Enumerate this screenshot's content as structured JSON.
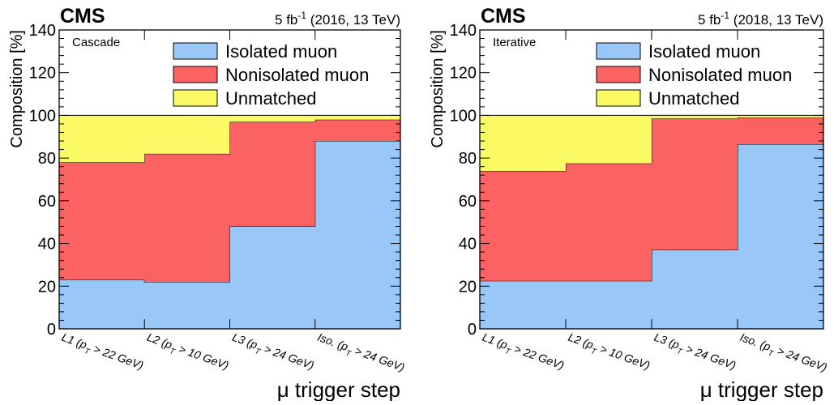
{
  "colors": {
    "isolated": "#99c8f8",
    "nonisolated": "#fd6262",
    "unmatched": "#fafa65",
    "frame": "#000000"
  },
  "chart_data": [
    {
      "type": "area",
      "stacked": true,
      "style": "step",
      "experiment": "CMS",
      "lumi_text": "5 fb",
      "lumi_exp": "-1",
      "lumi_suffix": " (2016, 13 TeV)",
      "panel_label": "Cascade",
      "xlabel": "μ trigger step",
      "ylabel": "Composition [%]",
      "ylim": [
        0,
        140
      ],
      "yticks": [
        "0",
        "20",
        "40",
        "60",
        "80",
        "100",
        "120",
        "140"
      ],
      "categories": [
        "L1 (pT > 22 GeV)",
        "L2 (pT > 10 GeV)",
        "L3 (pT > 24 GeV)",
        "Iso. (pT > 24 GeV)"
      ],
      "category_labels": [
        {
          "head": "L1 (p",
          "sub": "T",
          "tail": " > 22 GeV)"
        },
        {
          "head": "L2 (p",
          "sub": "T",
          "tail": " > 10 GeV)"
        },
        {
          "head": "L3 (p",
          "sub": "T",
          "tail": " > 24 GeV)"
        },
        {
          "head": "Iso. (p",
          "sub": "T",
          "tail": " > 24 GeV)"
        }
      ],
      "series": [
        {
          "name": "Isolated muon",
          "color_key": "isolated",
          "values": [
            23,
            22,
            48,
            88
          ]
        },
        {
          "name": "Nonisolated muon",
          "color_key": "nonisolated",
          "values": [
            55,
            60,
            49,
            10
          ]
        },
        {
          "name": "Unmatched",
          "color_key": "unmatched",
          "values": [
            22,
            18,
            3,
            2
          ]
        }
      ],
      "legend_position": "top-right",
      "grid": false
    },
    {
      "type": "area",
      "stacked": true,
      "style": "step",
      "experiment": "CMS",
      "lumi_text": "5 fb",
      "lumi_exp": "-1",
      "lumi_suffix": " (2018, 13 TeV)",
      "panel_label": "Iterative",
      "xlabel": "μ trigger step",
      "ylabel": "Composition [%]",
      "ylim": [
        0,
        140
      ],
      "yticks": [
        "0",
        "20",
        "40",
        "60",
        "80",
        "100",
        "120",
        "140"
      ],
      "categories": [
        "L1 (pT > 22 GeV)",
        "L2 (pT > 10 GeV)",
        "L3 (pT > 24 GeV)",
        "Iso. (pT > 24 GeV)"
      ],
      "category_labels": [
        {
          "head": "L1 (p",
          "sub": "T",
          "tail": " > 22 GeV)"
        },
        {
          "head": "L2 (p",
          "sub": "T",
          "tail": " > 10 GeV)"
        },
        {
          "head": "L3 (p",
          "sub": "T",
          "tail": " > 24 GeV)"
        },
        {
          "head": "Iso. (p",
          "sub": "T",
          "tail": " > 24 GeV)"
        }
      ],
      "series": [
        {
          "name": "Isolated muon",
          "color_key": "isolated",
          "values": [
            22.5,
            22.5,
            37,
            86.5
          ]
        },
        {
          "name": "Nonisolated muon",
          "color_key": "nonisolated",
          "values": [
            51.5,
            55,
            61.5,
            12.5
          ]
        },
        {
          "name": "Unmatched",
          "color_key": "unmatched",
          "values": [
            26,
            22.5,
            1.5,
            1
          ]
        }
      ],
      "legend_position": "top-right",
      "grid": false
    }
  ]
}
